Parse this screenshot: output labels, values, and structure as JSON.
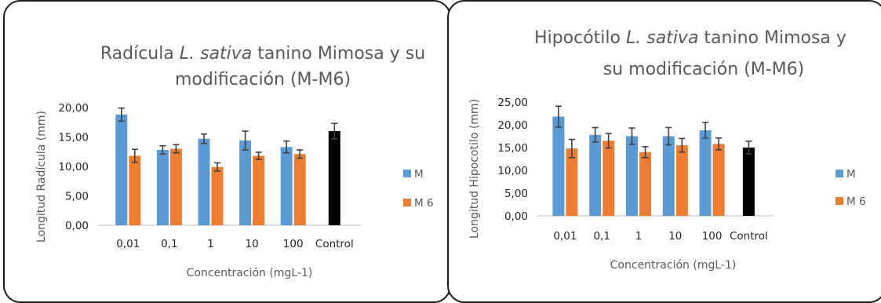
{
  "colors": {
    "M": "#5B9BD5",
    "M6": "#ED7D31",
    "Control": "#000000",
    "error_bar": "#404040",
    "axis": "#BFBFBF",
    "text": "#595959"
  },
  "chart_data": [
    {
      "type": "bar",
      "title_parts": [
        "Radícula ",
        "L. sativa",
        " tanino Mimosa y su",
        "modificación (M-M6)"
      ],
      "xlabel": "Concentración (mgL-1)",
      "ylabel": "Longitud Radícula (mm)",
      "ylim": [
        0,
        20
      ],
      "yticks": [
        "0,00",
        "5,00",
        "10,00",
        "15,00",
        "20,00"
      ],
      "categories": [
        "0,01",
        "0,1",
        "1",
        "10",
        "100",
        "Control"
      ],
      "series": [
        {
          "name": "M",
          "values": [
            18.8,
            12.8,
            14.7,
            14.4,
            13.3,
            null
          ],
          "errors": [
            1.1,
            0.7,
            0.8,
            1.6,
            1.0,
            null
          ]
        },
        {
          "name": "M 6",
          "values": [
            11.8,
            13.0,
            9.9,
            11.8,
            12.1,
            null
          ],
          "errors": [
            1.1,
            0.7,
            0.7,
            0.6,
            0.7,
            null
          ]
        },
        {
          "name": "",
          "values": [
            null,
            null,
            null,
            null,
            null,
            16.0
          ],
          "errors": [
            null,
            null,
            null,
            null,
            null,
            1.3
          ]
        }
      ],
      "legend": "right"
    },
    {
      "type": "bar",
      "title_parts": [
        "Hipocótilo ",
        "L. sativa",
        " tanino Mimosa y",
        "su modificación (M-M6)"
      ],
      "xlabel": "Concentración (mgL-1)",
      "ylabel": "Longitud Hipocotilo (mm)",
      "ylim": [
        0,
        25
      ],
      "yticks": [
        "0,00",
        "5,00",
        "10,00",
        "15,00",
        "20,00",
        "25,00"
      ],
      "categories": [
        "0,01",
        "0,1",
        "1",
        "10",
        "100",
        "Control"
      ],
      "series": [
        {
          "name": "M",
          "values": [
            21.8,
            17.8,
            17.5,
            17.5,
            18.8,
            null
          ],
          "errors": [
            2.3,
            1.6,
            1.8,
            1.9,
            1.7,
            null
          ]
        },
        {
          "name": "M 6",
          "values": [
            14.8,
            16.5,
            14.0,
            15.5,
            15.8,
            null
          ],
          "errors": [
            2.0,
            1.6,
            1.2,
            1.5,
            1.3,
            null
          ]
        },
        {
          "name": "",
          "values": [
            null,
            null,
            null,
            null,
            null,
            15.0
          ],
          "errors": [
            null,
            null,
            null,
            null,
            null,
            1.4
          ]
        }
      ],
      "legend": "right"
    }
  ]
}
